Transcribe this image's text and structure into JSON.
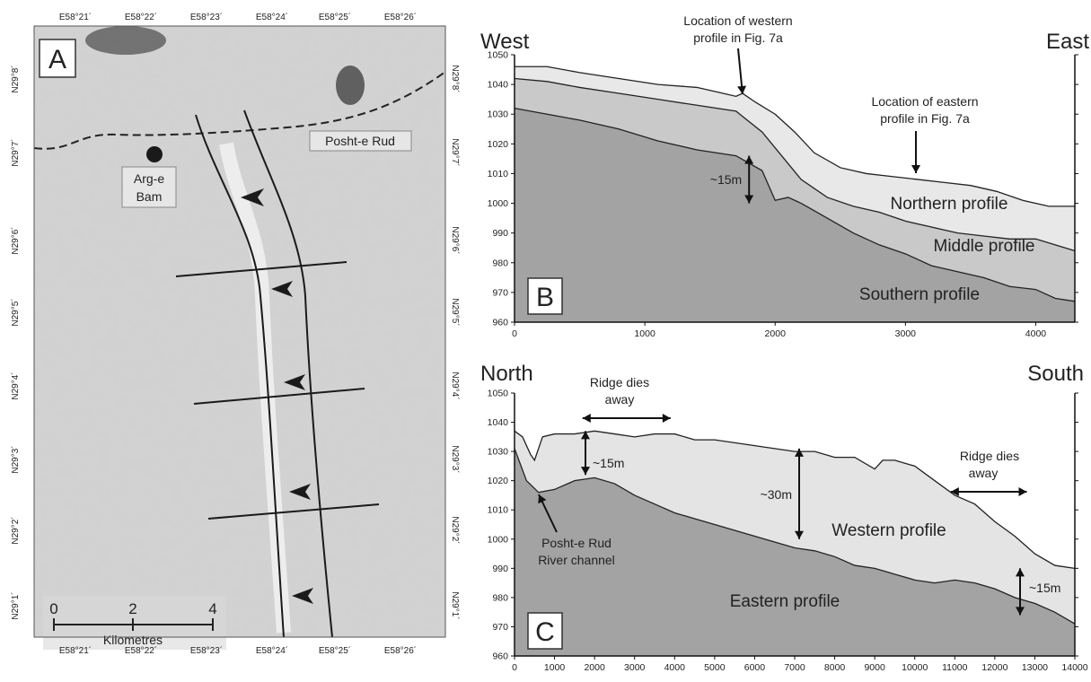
{
  "panel_a": {
    "letter": "A",
    "top_coords": [
      "E58°21´",
      "E58°22´",
      "E58°23´",
      "E58°24´",
      "E58°25´",
      "E58°26´"
    ],
    "bottom_coords": [
      "E58°21´",
      "E58°22´",
      "E58°23´",
      "E58°24´",
      "E58°25´",
      "E58°26´"
    ],
    "left_coords": [
      "N29°8´",
      "N29°7´",
      "N29°6´",
      "N29°5´",
      "N29°4´",
      "N29°3´",
      "N29°2´",
      "N29°1´"
    ],
    "right_coords": [
      "N29°8´",
      "N29°7´",
      "N29°6´",
      "N29°5´",
      "N29°4´",
      "N29°3´",
      "N29°2´",
      "N29°1´"
    ],
    "river_label": "Posht-e Rud",
    "site_label_line1": "Arg-e",
    "site_label_line2": "Bam",
    "scale_ticks": [
      "0",
      "2",
      "4"
    ],
    "scale_unit": "Kilometres"
  },
  "chart_data": [
    {
      "type": "area",
      "panel": "B",
      "left_title": "West",
      "right_title": "East",
      "xlim": [
        0,
        4300
      ],
      "ylim": [
        960,
        1050
      ],
      "xticks": [
        0,
        1000,
        2000,
        3000,
        4000
      ],
      "yticks": [
        960,
        970,
        980,
        990,
        1000,
        1010,
        1020,
        1030,
        1040,
        1050
      ],
      "series": [
        {
          "name": "Northern profile",
          "color": "#e8e8e8",
          "x": [
            0,
            250,
            500,
            800,
            1100,
            1400,
            1600,
            1700,
            1750,
            1850,
            2000,
            2150,
            2300,
            2500,
            2700,
            2900,
            3100,
            3300,
            3500,
            3700,
            3900,
            4100,
            4300
          ],
          "y": [
            1046,
            1046,
            1044,
            1042,
            1040,
            1039,
            1037,
            1036,
            1037,
            1034,
            1030,
            1024,
            1017,
            1012,
            1010,
            1009,
            1008,
            1007,
            1006,
            1004,
            1001,
            999,
            999
          ]
        },
        {
          "name": "Middle profile",
          "color": "#c9c9c9",
          "x": [
            0,
            250,
            500,
            800,
            1100,
            1400,
            1700,
            1900,
            2050,
            2200,
            2400,
            2600,
            2800,
            3000,
            3200,
            3400,
            3600,
            3800,
            4000,
            4150,
            4300
          ],
          "y": [
            1042,
            1041,
            1039,
            1037,
            1035,
            1033,
            1031,
            1024,
            1016,
            1008,
            1002,
            999,
            997,
            994,
            992,
            990,
            989,
            988,
            988,
            986,
            984
          ]
        },
        {
          "name": "Southern profile",
          "color": "#a3a3a3",
          "x": [
            0,
            250,
            500,
            800,
            1100,
            1400,
            1700,
            1900,
            2000,
            2100,
            2200,
            2400,
            2600,
            2800,
            3000,
            3200,
            3400,
            3600,
            3800,
            4000,
            4150,
            4300
          ],
          "y": [
            1032,
            1030,
            1028,
            1025,
            1021,
            1018,
            1016,
            1011,
            1001,
            1002,
            1000,
            995,
            990,
            986,
            983,
            979,
            977,
            975,
            972,
            971,
            968,
            967
          ]
        }
      ],
      "annotations": [
        {
          "text_line1": "Location of western",
          "text_line2": "profile in Fig. 7a",
          "x": 1750
        },
        {
          "text_line1": "Location of eastern",
          "text_line2": "profile in Fig. 7a",
          "x": 3100
        },
        {
          "text": "~15m",
          "x": 1800,
          "y_range": [
            1000,
            1016
          ]
        }
      ]
    },
    {
      "type": "area",
      "panel": "C",
      "left_title": "North",
      "right_title": "South",
      "xlim": [
        0,
        14000
      ],
      "ylim": [
        960,
        1050
      ],
      "xticks": [
        0,
        1000,
        2000,
        3000,
        4000,
        5000,
        6000,
        7000,
        8000,
        9000,
        10000,
        11000,
        12000,
        13000,
        14000
      ],
      "yticks": [
        960,
        970,
        980,
        990,
        1000,
        1010,
        1020,
        1030,
        1040,
        1050
      ],
      "series": [
        {
          "name": "Western profile",
          "color": "#e4e4e4",
          "x": [
            0,
            200,
            400,
            500,
            700,
            1000,
            1500,
            2000,
            2500,
            3000,
            3500,
            4000,
            4500,
            5000,
            5500,
            6000,
            6500,
            7000,
            7500,
            8000,
            8500,
            9000,
            9200,
            9500,
            10000,
            10500,
            11000,
            11500,
            12000,
            12500,
            13000,
            13500,
            14000
          ],
          "y": [
            1037,
            1035,
            1029,
            1027,
            1035,
            1036,
            1036,
            1037,
            1036,
            1035,
            1036,
            1036,
            1034,
            1034,
            1033,
            1032,
            1031,
            1030,
            1030,
            1028,
            1028,
            1024,
            1027,
            1027,
            1025,
            1020,
            1015,
            1012,
            1006,
            1001,
            995,
            991,
            990
          ]
        },
        {
          "name": "Eastern profile",
          "color": "#a3a3a3",
          "x": [
            0,
            300,
            600,
            1000,
            1500,
            2000,
            2500,
            3000,
            3500,
            4000,
            4500,
            5000,
            5500,
            6000,
            6500,
            7000,
            7500,
            8000,
            8500,
            9000,
            9500,
            10000,
            10500,
            11000,
            11500,
            12000,
            12500,
            13000,
            13500,
            14000
          ],
          "y": [
            1031,
            1020,
            1016,
            1017,
            1020,
            1021,
            1019,
            1015,
            1012,
            1009,
            1007,
            1005,
            1003,
            1001,
            999,
            997,
            996,
            994,
            991,
            990,
            988,
            986,
            985,
            986,
            985,
            983,
            980,
            978,
            975,
            971
          ]
        }
      ],
      "annotations": [
        {
          "text_line1": "Ridge dies",
          "text_line2": "away",
          "x_range": [
            1700,
            3900
          ]
        },
        {
          "text_line1": "Ridge dies",
          "text_line2": "away",
          "x_range": [
            10900,
            12800
          ]
        },
        {
          "text": "~15m",
          "x": 1900,
          "y_range": [
            1022,
            1037
          ]
        },
        {
          "text": "~30m",
          "x": 7200,
          "y_range": [
            1000,
            1031
          ]
        },
        {
          "text": "~15m",
          "x": 13300,
          "y_range": [
            974,
            990
          ]
        },
        {
          "text_line1": "Posht-e Rud",
          "text_line2": "River channel",
          "x": 600
        }
      ]
    }
  ]
}
